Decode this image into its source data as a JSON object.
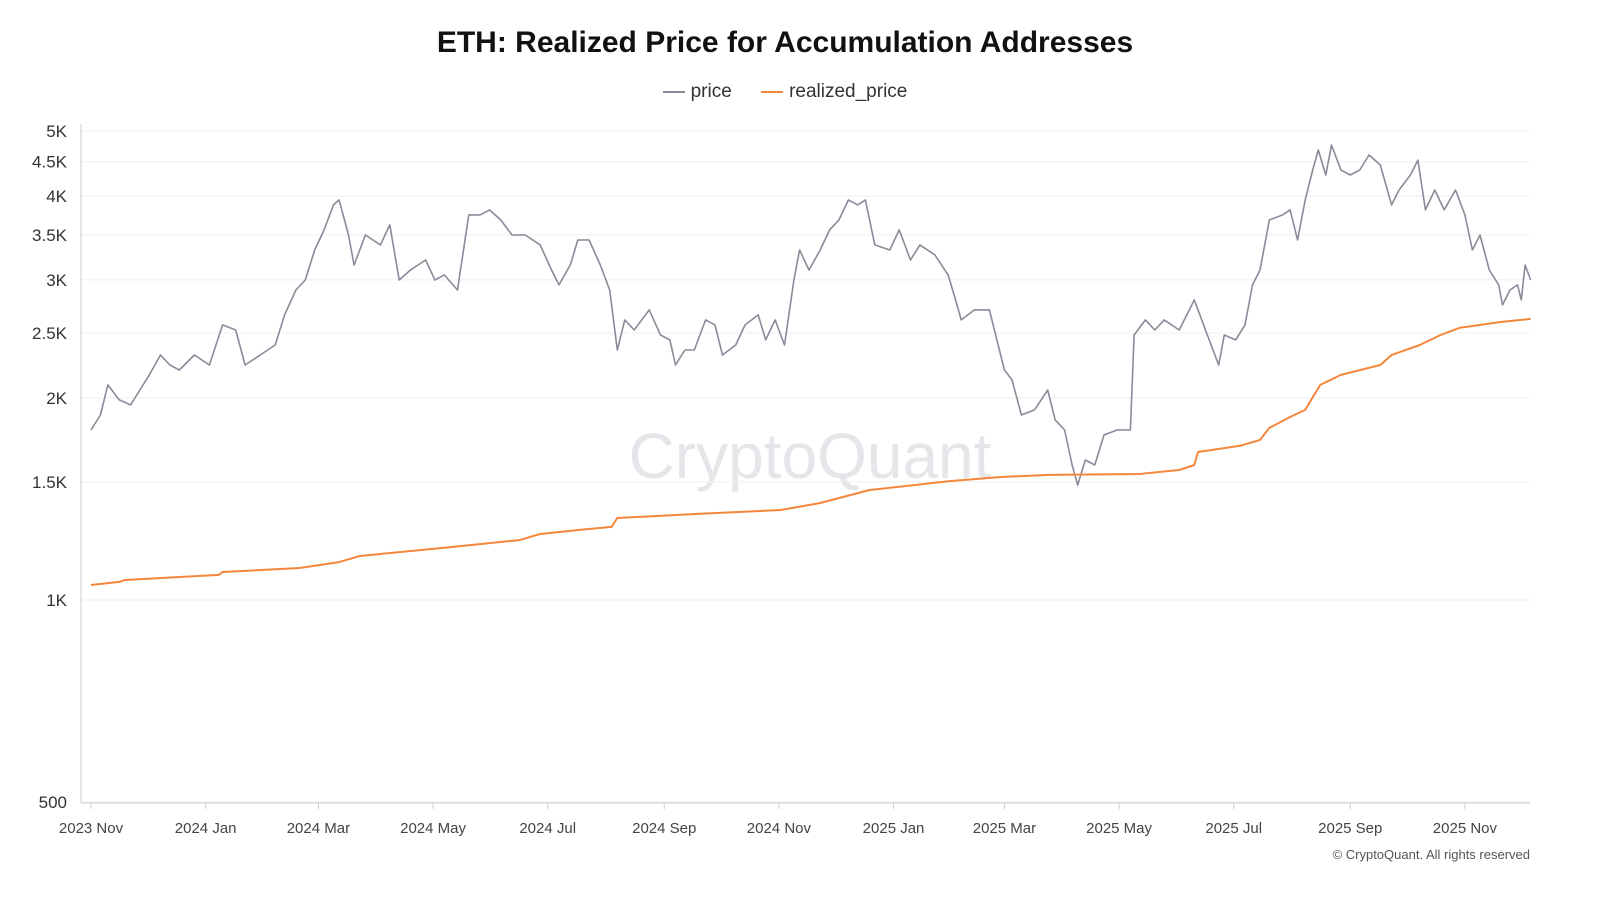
{
  "chart_data": {
    "type": "line",
    "title": "ETH: Realized Price for Accumulation Addresses",
    "y_scale": "log",
    "ylim": [
      500,
      5200
    ],
    "y_ticks": [
      500,
      1000,
      1500,
      2000,
      2500,
      3000,
      3500,
      4000,
      4500,
      5000
    ],
    "y_tick_labels": [
      "500",
      "1K",
      "1.5K",
      "2K",
      "2.5K",
      "3K",
      "3.5K",
      "4K",
      "4.5K",
      "5K"
    ],
    "xlim": [
      "2023-11-01",
      "2025-12-06"
    ],
    "x_ticks": [
      "2023-11-01",
      "2024-01-01",
      "2024-03-01",
      "2024-05-01",
      "2024-07-01",
      "2024-09-01",
      "2024-11-01",
      "2025-01-01",
      "2025-03-01",
      "2025-05-01",
      "2025-07-01",
      "2025-09-01",
      "2025-11-01"
    ],
    "x_tick_labels": [
      "2023 Nov",
      "2024 Jan",
      "2024 Mar",
      "2024 May",
      "2024 Jul",
      "2024 Sep",
      "2024 Nov",
      "2025 Jan",
      "2025 Mar",
      "2025 May",
      "2025 Jul",
      "2025 Sep",
      "2025 Nov"
    ],
    "grid": "horizontal",
    "legend_position": "top",
    "watermark": "CryptoQuant",
    "series": [
      {
        "name": "price",
        "color": "#8a8a99",
        "points": [
          [
            "2023-11-01",
            1792
          ],
          [
            "2023-11-06",
            1887
          ],
          [
            "2023-11-10",
            2092
          ],
          [
            "2023-11-16",
            1987
          ],
          [
            "2023-11-22",
            1953
          ],
          [
            "2023-11-27",
            2056
          ],
          [
            "2023-12-02",
            2165
          ],
          [
            "2023-12-08",
            2318
          ],
          [
            "2023-12-13",
            2240
          ],
          [
            "2023-12-18",
            2202
          ],
          [
            "2023-12-26",
            2318
          ],
          [
            "2024-01-03",
            2240
          ],
          [
            "2024-01-10",
            2570
          ],
          [
            "2024-01-17",
            2526
          ],
          [
            "2024-01-22",
            2240
          ],
          [
            "2024-01-30",
            2318
          ],
          [
            "2024-02-07",
            2399
          ],
          [
            "2024-02-12",
            2660
          ],
          [
            "2024-02-18",
            2897
          ],
          [
            "2024-02-23",
            2998
          ],
          [
            "2024-02-28",
            3324
          ],
          [
            "2024-03-04",
            3561
          ],
          [
            "2024-03-09",
            3880
          ],
          [
            "2024-03-12",
            3947
          ],
          [
            "2024-03-17",
            3499
          ],
          [
            "2024-03-20",
            3157
          ],
          [
            "2024-03-26",
            3499
          ],
          [
            "2024-04-03",
            3382
          ],
          [
            "2024-04-08",
            3622
          ],
          [
            "2024-04-13",
            2998
          ],
          [
            "2024-04-19",
            3103
          ],
          [
            "2024-04-27",
            3212
          ],
          [
            "2024-05-02",
            2998
          ],
          [
            "2024-05-07",
            3051
          ],
          [
            "2024-05-14",
            2897
          ],
          [
            "2024-05-20",
            3749
          ],
          [
            "2024-05-26",
            3749
          ],
          [
            "2024-05-31",
            3814
          ],
          [
            "2024-06-06",
            3685
          ],
          [
            "2024-06-12",
            3499
          ],
          [
            "2024-06-19",
            3499
          ],
          [
            "2024-06-27",
            3382
          ],
          [
            "2024-07-03",
            3103
          ],
          [
            "2024-07-07",
            2948
          ],
          [
            "2024-07-13",
            3157
          ],
          [
            "2024-07-17",
            3440
          ],
          [
            "2024-07-23",
            3440
          ],
          [
            "2024-07-29",
            3157
          ],
          [
            "2024-08-03",
            2897
          ],
          [
            "2024-08-07",
            2358
          ],
          [
            "2024-08-11",
            2615
          ],
          [
            "2024-08-16",
            2526
          ],
          [
            "2024-08-24",
            2706
          ],
          [
            "2024-08-30",
            2483
          ],
          [
            "2024-09-04",
            2441
          ],
          [
            "2024-09-07",
            2240
          ],
          [
            "2024-09-12",
            2358
          ],
          [
            "2024-09-17",
            2358
          ],
          [
            "2024-09-23",
            2615
          ],
          [
            "2024-09-28",
            2570
          ],
          [
            "2024-10-02",
            2318
          ],
          [
            "2024-10-09",
            2399
          ],
          [
            "2024-10-14",
            2570
          ],
          [
            "2024-10-21",
            2660
          ],
          [
            "2024-10-25",
            2441
          ],
          [
            "2024-10-30",
            2615
          ],
          [
            "2024-11-04",
            2399
          ],
          [
            "2024-11-09",
            2998
          ],
          [
            "2024-11-12",
            3324
          ],
          [
            "2024-11-17",
            3103
          ],
          [
            "2024-11-23",
            3324
          ],
          [
            "2024-11-28",
            3561
          ],
          [
            "2024-12-03",
            3685
          ],
          [
            "2024-12-08",
            3947
          ],
          [
            "2024-12-13",
            3880
          ],
          [
            "2024-12-17",
            3947
          ],
          [
            "2024-12-22",
            3382
          ],
          [
            "2024-12-30",
            3324
          ],
          [
            "2025-01-04",
            3561
          ],
          [
            "2025-01-10",
            3212
          ],
          [
            "2025-01-15",
            3382
          ],
          [
            "2025-01-23",
            3268
          ],
          [
            "2025-01-30",
            3051
          ],
          [
            "2025-02-03",
            2801
          ],
          [
            "2025-02-06",
            2615
          ],
          [
            "2025-02-13",
            2706
          ],
          [
            "2025-02-21",
            2706
          ],
          [
            "2025-02-25",
            2441
          ],
          [
            "2025-03-01",
            2202
          ],
          [
            "2025-03-05",
            2128
          ],
          [
            "2025-03-10",
            1887
          ],
          [
            "2025-03-17",
            1920
          ],
          [
            "2025-03-24",
            2056
          ],
          [
            "2025-03-28",
            1855
          ],
          [
            "2025-04-02",
            1792
          ],
          [
            "2025-04-06",
            1589
          ],
          [
            "2025-04-09",
            1484
          ],
          [
            "2025-04-13",
            1617
          ],
          [
            "2025-04-18",
            1589
          ],
          [
            "2025-04-23",
            1762
          ],
          [
            "2025-04-30",
            1792
          ],
          [
            "2025-05-07",
            1792
          ],
          [
            "2025-05-09",
            2483
          ],
          [
            "2025-05-15",
            2615
          ],
          [
            "2025-05-20",
            2526
          ],
          [
            "2025-05-25",
            2615
          ],
          [
            "2025-06-02",
            2526
          ],
          [
            "2025-06-10",
            2801
          ],
          [
            "2025-06-16",
            2526
          ],
          [
            "2025-06-23",
            2240
          ],
          [
            "2025-06-26",
            2483
          ],
          [
            "2025-07-02",
            2441
          ],
          [
            "2025-07-07",
            2570
          ],
          [
            "2025-07-11",
            2948
          ],
          [
            "2025-07-15",
            3103
          ],
          [
            "2025-07-20",
            3685
          ],
          [
            "2025-07-27",
            3749
          ],
          [
            "2025-07-31",
            3814
          ],
          [
            "2025-08-04",
            3440
          ],
          [
            "2025-08-08",
            3947
          ],
          [
            "2025-08-12",
            4373
          ],
          [
            "2025-08-15",
            4684
          ],
          [
            "2025-08-19",
            4299
          ],
          [
            "2025-08-22",
            4766
          ],
          [
            "2025-08-27",
            4373
          ],
          [
            "2025-09-01",
            4299
          ],
          [
            "2025-09-06",
            4373
          ],
          [
            "2025-09-11",
            4605
          ],
          [
            "2025-09-17",
            4449
          ],
          [
            "2025-09-23",
            3880
          ],
          [
            "2025-09-27",
            4083
          ],
          [
            "2025-10-03",
            4299
          ],
          [
            "2025-10-07",
            4525
          ],
          [
            "2025-10-11",
            3814
          ],
          [
            "2025-10-16",
            4083
          ],
          [
            "2025-10-21",
            3814
          ],
          [
            "2025-10-27",
            4083
          ],
          [
            "2025-11-01",
            3749
          ],
          [
            "2025-11-05",
            3324
          ],
          [
            "2025-11-09",
            3499
          ],
          [
            "2025-11-14",
            3103
          ],
          [
            "2025-11-19",
            2948
          ],
          [
            "2025-11-21",
            2753
          ],
          [
            "2025-11-25",
            2897
          ],
          [
            "2025-11-29",
            2948
          ],
          [
            "2025-12-01",
            2801
          ],
          [
            "2025-12-03",
            3157
          ],
          [
            "2025-12-06",
            2998
          ]
        ]
      },
      {
        "name": "realized_price",
        "color": "#f5873d",
        "points": [
          [
            "2023-11-01",
            1053
          ],
          [
            "2023-11-16",
            1064
          ],
          [
            "2023-11-19",
            1071
          ],
          [
            "2024-01-08",
            1090
          ],
          [
            "2024-01-10",
            1101
          ],
          [
            "2024-02-20",
            1116
          ],
          [
            "2024-03-12",
            1139
          ],
          [
            "2024-03-23",
            1163
          ],
          [
            "2024-05-05",
            1195
          ],
          [
            "2024-06-16",
            1228
          ],
          [
            "2024-06-27",
            1254
          ],
          [
            "2024-07-18",
            1272
          ],
          [
            "2024-08-04",
            1285
          ],
          [
            "2024-08-07",
            1325
          ],
          [
            "2024-09-20",
            1344
          ],
          [
            "2024-11-02",
            1362
          ],
          [
            "2024-11-23",
            1395
          ],
          [
            "2024-12-19",
            1458
          ],
          [
            "2025-01-31",
            1504
          ],
          [
            "2025-02-27",
            1525
          ],
          [
            "2025-03-25",
            1536
          ],
          [
            "2025-05-12",
            1541
          ],
          [
            "2025-06-02",
            1562
          ],
          [
            "2025-06-10",
            1589
          ],
          [
            "2025-06-12",
            1662
          ],
          [
            "2025-07-04",
            1697
          ],
          [
            "2025-07-15",
            1732
          ],
          [
            "2025-07-20",
            1805
          ],
          [
            "2025-07-31",
            1874
          ],
          [
            "2025-08-08",
            1920
          ],
          [
            "2025-08-16",
            2092
          ],
          [
            "2025-08-27",
            2165
          ],
          [
            "2025-09-17",
            2240
          ],
          [
            "2025-09-23",
            2318
          ],
          [
            "2025-10-08",
            2399
          ],
          [
            "2025-10-19",
            2483
          ],
          [
            "2025-10-29",
            2544
          ],
          [
            "2025-11-20",
            2596
          ],
          [
            "2025-12-06",
            2624
          ]
        ]
      }
    ]
  },
  "footer": "© CryptoQuant. All rights reserved"
}
